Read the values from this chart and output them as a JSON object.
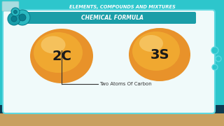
{
  "title_bar_text": "ELEMENTS, COMPOUNDS AND MIXTURES",
  "subtitle_text": "CHEMICAL FORMULA",
  "circle1_label": "2C",
  "circle2_label": "3S",
  "annotation_text": "Two Atoms Of Carbon",
  "bg_color_dark": "#0d3b52",
  "bg_color_teal": "#2dc6cc",
  "panel_color": "#f0fafa",
  "panel_border": "#5cd8e0",
  "title_bar_bg": "#2dc6cc",
  "title_rect_color": "#a8dde0",
  "title_text_color": "#ffffff",
  "subtitle_bar_color": "#1a9ea8",
  "subtitle_text_color": "#ffffff",
  "circle_outer": "#e8922a",
  "circle_mid": "#f0a830",
  "circle_highlight": "#f8cc70",
  "circle_text_color": "#1a1a1a",
  "bottom_bar_color": "#c8a060",
  "annotation_color": "#333333",
  "gear_color1": "#2ab8c0",
  "gear_color2": "#1a9eaa"
}
